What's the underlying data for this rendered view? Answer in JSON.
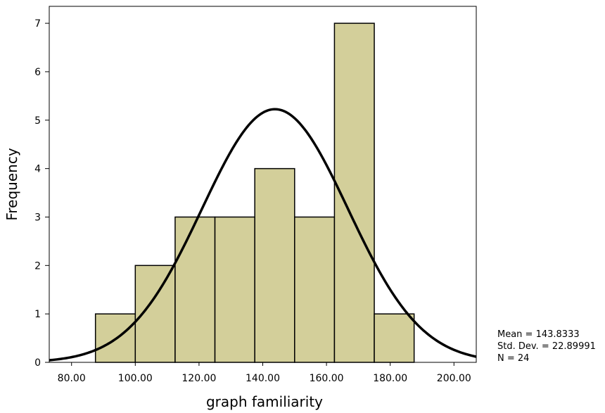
{
  "chart_data": {
    "type": "bar",
    "subtype": "histogram",
    "xlabel": "graph familiarity",
    "ylabel": "Frequency",
    "xlim": [
      73,
      207
    ],
    "ylim": [
      0,
      7.35
    ],
    "x_ticks": [
      "80.00",
      "100.00",
      "120.00",
      "140.00",
      "160.00",
      "180.00",
      "200.00"
    ],
    "y_ticks": [
      "0",
      "1",
      "2",
      "3",
      "4",
      "5",
      "6",
      "7"
    ],
    "bin_width": 12.5,
    "bins": [
      {
        "start": 87.5,
        "end": 100.0,
        "count": 1
      },
      {
        "start": 100.0,
        "end": 112.5,
        "count": 2
      },
      {
        "start": 112.5,
        "end": 125.0,
        "count": 3
      },
      {
        "start": 125.0,
        "end": 137.5,
        "count": 3
      },
      {
        "start": 137.5,
        "end": 150.0,
        "count": 4
      },
      {
        "start": 150.0,
        "end": 162.5,
        "count": 3
      },
      {
        "start": 162.5,
        "end": 175.0,
        "count": 7
      },
      {
        "start": 175.0,
        "end": 187.5,
        "count": 1
      }
    ],
    "normal_curve": {
      "mean": 143.8333,
      "sd": 22.89991,
      "n": 24
    },
    "bar_color": "#d3cf9a",
    "bar_edge_color": "#000000",
    "curve_color": "#000000",
    "grid": false,
    "legend": null,
    "stats": {
      "mean_label": "Mean = 143.8333",
      "sd_label": "Std. Dev. = 22.89991",
      "n_label": "N = 24"
    }
  }
}
